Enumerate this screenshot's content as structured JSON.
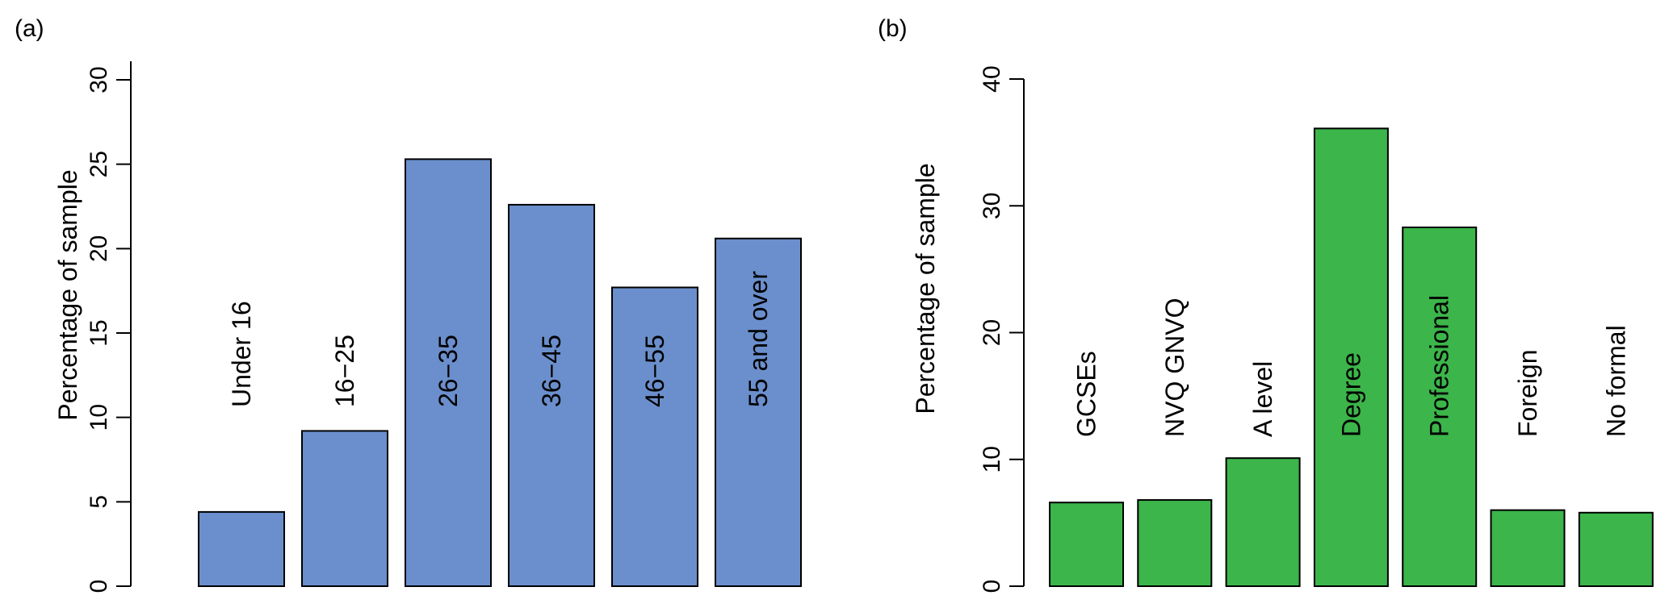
{
  "chart_data": [
    {
      "panel": "(a)",
      "type": "bar",
      "ylabel": "Percentage of sample",
      "ylim": [
        0,
        30
      ],
      "yticks": [
        "0",
        "5",
        "10",
        "15",
        "20",
        "25",
        "30"
      ],
      "categories": [
        "Under 16",
        "16−25",
        "26−35",
        "36−45",
        "46−55",
        "55 and over"
      ],
      "values": [
        4.4,
        9.2,
        25.3,
        22.6,
        17.7,
        20.6
      ],
      "color": "#6b8fcc",
      "grid": false,
      "legend": "none"
    },
    {
      "panel": "(b)",
      "type": "bar",
      "ylabel": "Percentage of sample",
      "ylim": [
        0,
        40
      ],
      "yticks": [
        "0",
        "10",
        "20",
        "30",
        "40"
      ],
      "categories": [
        "GCSEs",
        "NVQ GNVQ",
        "A level",
        "Degree",
        "Professional",
        "Foreign",
        "No formal"
      ],
      "values": [
        6.6,
        6.8,
        10.1,
        36.1,
        28.3,
        6.0,
        5.8
      ],
      "color": "#3cb54a",
      "grid": false,
      "legend": "none"
    }
  ]
}
